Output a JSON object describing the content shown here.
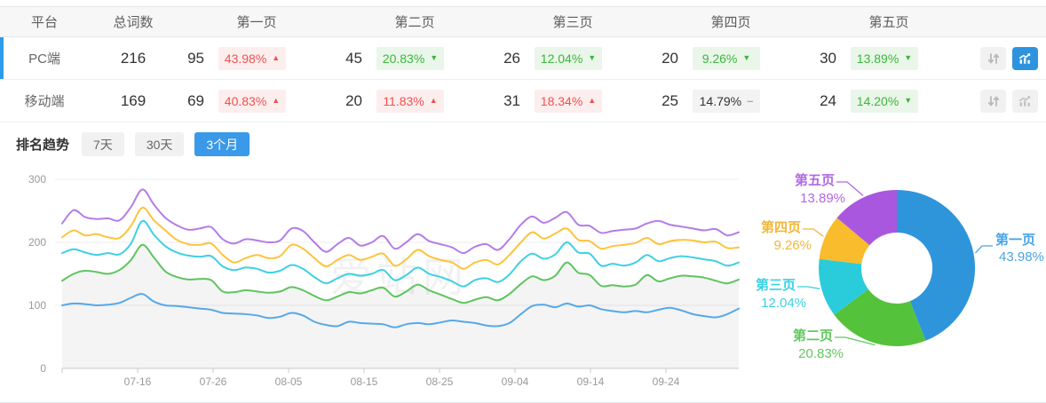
{
  "table": {
    "headers": [
      "平台",
      "总词数",
      "第一页",
      "第二页",
      "第三页",
      "第四页",
      "第五页"
    ],
    "rows": [
      {
        "platform": "PC端",
        "total": "216",
        "selected": true,
        "pages": [
          {
            "count": "95",
            "pct": "43.98%",
            "dir": "up"
          },
          {
            "count": "45",
            "pct": "20.83%",
            "dir": "down"
          },
          {
            "count": "26",
            "pct": "12.04%",
            "dir": "down"
          },
          {
            "count": "20",
            "pct": "9.26%",
            "dir": "down"
          },
          {
            "count": "30",
            "pct": "13.89%",
            "dir": "down"
          }
        ],
        "actions": {
          "sort_icon": "sort-arrows-icon",
          "trend_icon": "trend-chart-icon",
          "trend_active": true
        }
      },
      {
        "platform": "移动端",
        "total": "169",
        "selected": false,
        "pages": [
          {
            "count": "69",
            "pct": "40.83%",
            "dir": "up"
          },
          {
            "count": "20",
            "pct": "11.83%",
            "dir": "up"
          },
          {
            "count": "31",
            "pct": "18.34%",
            "dir": "up"
          },
          {
            "count": "25",
            "pct": "14.79%",
            "dir": "flat"
          },
          {
            "count": "24",
            "pct": "14.20%",
            "dir": "down"
          }
        ],
        "actions": {
          "sort_icon": "sort-arrows-icon",
          "trend_icon": "trend-chart-icon",
          "trend_active": false
        }
      }
    ]
  },
  "trend": {
    "label": "排名趋势",
    "tabs": [
      {
        "label": "7天",
        "active": false
      },
      {
        "label": "30天",
        "active": false
      },
      {
        "label": "3个月",
        "active": true
      }
    ]
  },
  "watermark": "爱站网",
  "colors": {
    "row_accent": "#2d9ceb",
    "tab_active": "#3a99e9",
    "icon_active": "#2e93de",
    "badge_up_bg": "#fdeeee",
    "badge_up_text": "#f25050",
    "badge_down_bg": "#eaf6e9",
    "badge_down_text": "#3cb63c",
    "badge_flat_bg": "#f3f3f3",
    "badge_flat_text": "#333333"
  },
  "chart_data": [
    {
      "type": "line",
      "title": "排名趋势（3个月）",
      "x_ticks": [
        "07-16",
        "07-26",
        "08-05",
        "08-15",
        "08-25",
        "09-04",
        "09-14",
        "09-24"
      ],
      "ylim": [
        0,
        300
      ],
      "y_ticks": [
        0,
        100,
        200,
        300
      ],
      "grid": true,
      "legend": "none",
      "series": [
        {
          "name": "第一页",
          "color": "#55a9e8",
          "area": false,
          "values": [
            100,
            103,
            102,
            100,
            101,
            104,
            112,
            118,
            106,
            100,
            99,
            97,
            95,
            93,
            88,
            87,
            86,
            84,
            80,
            82,
            88,
            84,
            74,
            69,
            67,
            74,
            72,
            71,
            70,
            65,
            70,
            72,
            70,
            73,
            76,
            74,
            72,
            68,
            67,
            72,
            86,
            99,
            101,
            97,
            103,
            98,
            100,
            94,
            91,
            89,
            91,
            89,
            93,
            96,
            92,
            86,
            83,
            81,
            86,
            95
          ]
        },
        {
          "name": "第二页",
          "color": "#5fc45f",
          "area": true,
          "values": [
            139,
            150,
            155,
            153,
            150,
            156,
            172,
            196,
            176,
            154,
            145,
            141,
            142,
            140,
            122,
            121,
            124,
            122,
            120,
            122,
            129,
            124,
            115,
            108,
            114,
            121,
            119,
            124,
            128,
            114,
            122,
            133,
            124,
            117,
            110,
            104,
            109,
            113,
            108,
            118,
            134,
            146,
            140,
            147,
            168,
            152,
            148,
            131,
            132,
            130,
            133,
            148,
            138,
            143,
            147,
            146,
            144,
            139,
            135,
            141
          ]
        },
        {
          "name": "第三页",
          "color": "#3ed0e2",
          "area": false,
          "values": [
            183,
            189,
            184,
            180,
            183,
            181,
            198,
            234,
            212,
            194,
            184,
            179,
            177,
            178,
            162,
            156,
            160,
            158,
            152,
            155,
            164,
            158,
            145,
            135,
            143,
            150,
            147,
            150,
            156,
            140,
            148,
            160,
            150,
            145,
            138,
            130,
            140,
            143,
            137,
            149,
            170,
            182,
            174,
            181,
            200,
            184,
            182,
            163,
            166,
            163,
            168,
            180,
            170,
            175,
            178,
            176,
            173,
            170,
            163,
            168
          ]
        },
        {
          "name": "第四页",
          "color": "#fcc43e",
          "area": false,
          "values": [
            208,
            219,
            211,
            213,
            208,
            207,
            226,
            255,
            235,
            219,
            204,
            197,
            196,
            198,
            180,
            168,
            175,
            180,
            175,
            178,
            196,
            190,
            175,
            162,
            172,
            180,
            172,
            177,
            182,
            163,
            173,
            188,
            178,
            172,
            168,
            158,
            168,
            172,
            165,
            180,
            200,
            216,
            206,
            214,
            222,
            204,
            202,
            190,
            194,
            196,
            199,
            207,
            197,
            202,
            204,
            203,
            200,
            201,
            191,
            192
          ]
        },
        {
          "name": "第五页",
          "color": "#b47ce8",
          "area": false,
          "values": [
            230,
            251,
            240,
            237,
            238,
            235,
            256,
            284,
            260,
            239,
            227,
            220,
            222,
            224,
            205,
            198,
            205,
            203,
            200,
            203,
            222,
            218,
            200,
            185,
            197,
            207,
            195,
            200,
            210,
            190,
            200,
            213,
            202,
            197,
            192,
            183,
            193,
            197,
            188,
            205,
            228,
            241,
            231,
            239,
            248,
            228,
            226,
            215,
            218,
            220,
            222,
            230,
            234,
            228,
            225,
            222,
            219,
            221,
            211,
            216
          ]
        }
      ]
    },
    {
      "type": "pie",
      "donut": true,
      "slices": [
        {
          "label": "第一页",
          "pct": 43.98,
          "pct_label": "43.98%",
          "color": "#2e95da",
          "label_color": "#4aa4e4"
        },
        {
          "label": "第二页",
          "pct": 20.83,
          "pct_label": "20.83%",
          "color": "#55c23c",
          "label_color": "#62c75f"
        },
        {
          "label": "第三页",
          "pct": 12.04,
          "pct_label": "12.04%",
          "color": "#2accdb",
          "label_color": "#3ad2e2"
        },
        {
          "label": "第四页",
          "pct": 9.26,
          "pct_label": "9.26%",
          "color": "#f8bc2c",
          "label_color": "#f0b73a"
        },
        {
          "label": "第五页",
          "pct": 13.89,
          "pct_label": "13.89%",
          "color": "#a957de",
          "label_color": "#b268e4"
        }
      ]
    }
  ]
}
